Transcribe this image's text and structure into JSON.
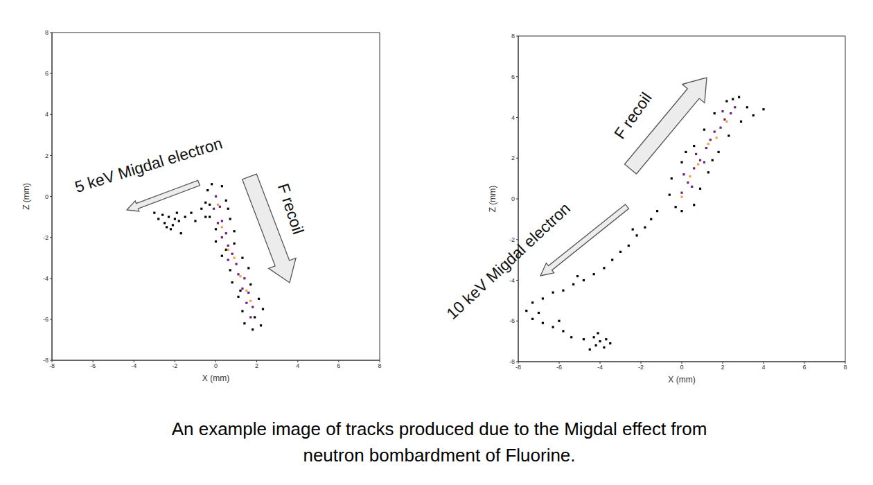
{
  "chart_data": [
    {
      "type": "scatter",
      "x_label": "X (mm)",
      "y_label": "Z (mm)",
      "xlim": [
        -8,
        8
      ],
      "ylim": [
        -8,
        8
      ],
      "xticks": [
        -8,
        -6,
        -4,
        -2,
        0,
        2,
        4,
        6,
        8
      ],
      "yticks": [
        -8,
        -6,
        -4,
        -2,
        0,
        2,
        4,
        6,
        8
      ],
      "series": [
        {
          "color": "#000000",
          "marker": "square",
          "points": [
            [
              -2.3,
              -1.0
            ],
            [
              -2.0,
              -1.1
            ],
            [
              -2.5,
              -1.3
            ],
            [
              -2.1,
              -1.4
            ],
            [
              -1.8,
              -1.2
            ],
            [
              -2.6,
              -0.9
            ],
            [
              -2.2,
              -1.6
            ],
            [
              -1.9,
              -0.8
            ],
            [
              -2.8,
              -1.1
            ],
            [
              -2.4,
              -1.5
            ],
            [
              -1.5,
              -1.0
            ],
            [
              -1.2,
              -0.8
            ],
            [
              -1.0,
              -1.2
            ],
            [
              -0.7,
              -0.6
            ],
            [
              -0.5,
              -1.0
            ],
            [
              -0.3,
              -0.4
            ],
            [
              -1.7,
              -1.8
            ],
            [
              -3.0,
              -0.8
            ]
          ]
        },
        {
          "color": "#000000",
          "marker": "square",
          "points": [
            [
              -0.4,
              0.3
            ],
            [
              0.3,
              0.5
            ],
            [
              -0.5,
              -0.3
            ],
            [
              0.5,
              -0.2
            ],
            [
              -0.3,
              -1.0
            ],
            [
              0.7,
              -1.1
            ],
            [
              0.0,
              -1.6
            ],
            [
              0.9,
              -1.7
            ],
            [
              0.0,
              -2.2
            ],
            [
              0.9,
              -2.3
            ],
            [
              0.3,
              -2.9
            ],
            [
              1.3,
              -3.0
            ],
            [
              0.7,
              -3.6
            ],
            [
              1.6,
              -3.5
            ],
            [
              0.8,
              -4.2
            ],
            [
              1.7,
              -4.3
            ],
            [
              1.1,
              -4.9
            ],
            [
              2.1,
              -5.0
            ],
            [
              1.3,
              -5.6
            ],
            [
              2.3,
              -5.5
            ],
            [
              1.4,
              -6.2
            ],
            [
              2.2,
              -6.3
            ],
            [
              1.8,
              -6.5
            ],
            [
              -0.2,
              0.6
            ],
            [
              0.6,
              -0.6
            ],
            [
              0.5,
              -2.6
            ],
            [
              1.2,
              -4.6
            ],
            [
              1.9,
              -5.9
            ]
          ]
        },
        {
          "color": "#6b1f7e",
          "marker": "square",
          "points": [
            [
              0.0,
              0.0
            ],
            [
              0.2,
              -0.5
            ],
            [
              -0.1,
              -0.6
            ],
            [
              0.3,
              -1.2
            ],
            [
              0.1,
              -1.3
            ],
            [
              0.5,
              -1.8
            ],
            [
              0.3,
              -2.0
            ],
            [
              0.6,
              -2.4
            ],
            [
              0.8,
              -2.8
            ],
            [
              0.6,
              -3.1
            ],
            [
              1.0,
              -3.3
            ],
            [
              1.1,
              -3.8
            ],
            [
              1.4,
              -4.0
            ],
            [
              1.3,
              -4.5
            ],
            [
              1.6,
              -4.7
            ],
            [
              1.5,
              -5.2
            ],
            [
              1.8,
              -5.4
            ],
            [
              1.7,
              -5.9
            ]
          ]
        },
        {
          "color": "#f7a13b",
          "marker": "square",
          "points": [
            [
              0.1,
              -0.4
            ],
            [
              0.3,
              -1.5
            ],
            [
              0.6,
              -2.6
            ],
            [
              0.9,
              -3.0
            ],
            [
              1.2,
              -3.9
            ],
            [
              1.5,
              -4.6
            ],
            [
              1.7,
              -5.1
            ]
          ]
        }
      ],
      "annotations": [
        {
          "text": "5 keV Migdal electron"
        },
        {
          "text": "F recoil"
        }
      ]
    },
    {
      "type": "scatter",
      "x_label": "X (mm)",
      "y_label": "Z (mm)",
      "xlim": [
        -8,
        8
      ],
      "ylim": [
        -8,
        8
      ],
      "xticks": [
        -8,
        -6,
        -4,
        -2,
        0,
        2,
        4,
        6,
        8
      ],
      "yticks": [
        -8,
        -6,
        -4,
        -2,
        0,
        2,
        4,
        6,
        8
      ],
      "series": [
        {
          "color": "#000000",
          "marker": "square",
          "points": [
            [
              -1.2,
              -0.6
            ],
            [
              -1.5,
              -1.0
            ],
            [
              -1.8,
              -1.4
            ],
            [
              -2.2,
              -1.8
            ],
            [
              -2.6,
              -2.3
            ],
            [
              -3.0,
              -2.6
            ],
            [
              -3.4,
              -3.0
            ],
            [
              -3.8,
              -3.4
            ],
            [
              -4.3,
              -3.7
            ],
            [
              -4.8,
              -4.0
            ],
            [
              -5.3,
              -4.2
            ],
            [
              -5.8,
              -4.5
            ],
            [
              -6.3,
              -4.6
            ],
            [
              -6.8,
              -4.9
            ],
            [
              -7.3,
              -5.1
            ],
            [
              -7.6,
              -5.5
            ],
            [
              -7.3,
              -5.9
            ],
            [
              -6.8,
              -6.1
            ],
            [
              -6.3,
              -6.3
            ],
            [
              -5.8,
              -6.5
            ],
            [
              -5.4,
              -6.8
            ],
            [
              -4.8,
              -6.9
            ],
            [
              -4.3,
              -6.8
            ],
            [
              -4.0,
              -7.0
            ],
            [
              -3.7,
              -6.9
            ],
            [
              -4.2,
              -7.2
            ],
            [
              -3.8,
              -7.3
            ],
            [
              -4.5,
              -7.4
            ],
            [
              -3.5,
              -7.1
            ],
            [
              -4.1,
              -6.6
            ],
            [
              -6.0,
              -6.0
            ],
            [
              -7.0,
              -5.6
            ],
            [
              -2.4,
              -1.5
            ],
            [
              -5.1,
              -3.8
            ]
          ]
        },
        {
          "color": "#000000",
          "marker": "square",
          "points": [
            [
              -0.6,
              0.2
            ],
            [
              0.6,
              -0.3
            ],
            [
              -0.5,
              1.0
            ],
            [
              0.9,
              0.5
            ],
            [
              0.0,
              1.8
            ],
            [
              1.3,
              1.3
            ],
            [
              0.6,
              2.6
            ],
            [
              1.8,
              2.3
            ],
            [
              1.1,
              3.4
            ],
            [
              2.3,
              3.1
            ],
            [
              1.6,
              4.2
            ],
            [
              2.9,
              3.8
            ],
            [
              2.2,
              4.8
            ],
            [
              3.2,
              4.5
            ],
            [
              2.8,
              5.0
            ],
            [
              3.5,
              4.1
            ],
            [
              4.0,
              4.4
            ],
            [
              0.0,
              -0.6
            ],
            [
              -0.3,
              -0.4
            ],
            [
              1.5,
              1.9
            ],
            [
              2.5,
              4.9
            ],
            [
              0.2,
              2.3
            ]
          ]
        },
        {
          "color": "#6b1f7e",
          "marker": "square",
          "points": [
            [
              0.0,
              0.3
            ],
            [
              0.3,
              0.8
            ],
            [
              0.1,
              1.2
            ],
            [
              0.6,
              1.5
            ],
            [
              0.9,
              1.9
            ],
            [
              0.7,
              2.2
            ],
            [
              1.2,
              2.5
            ],
            [
              1.4,
              2.9
            ],
            [
              1.6,
              3.3
            ],
            [
              1.9,
              3.5
            ],
            [
              2.1,
              3.9
            ],
            [
              2.4,
              4.2
            ],
            [
              2.6,
              4.5
            ],
            [
              0.5,
              0.6
            ],
            [
              1.1,
              1.8
            ],
            [
              2.0,
              4.3
            ]
          ]
        },
        {
          "color": "#f7a13b",
          "marker": "square",
          "points": [
            [
              0.0,
              0.1
            ],
            [
              0.4,
              1.1
            ],
            [
              0.8,
              1.7
            ],
            [
              1.3,
              2.7
            ],
            [
              1.7,
              3.0
            ],
            [
              2.2,
              3.8
            ]
          ]
        }
      ],
      "annotations": [
        {
          "text": "F recoil"
        },
        {
          "text": "10 keV Migdal electron"
        }
      ]
    }
  ],
  "caption": [
    "An example image of tracks produced due to the Migdal effect from",
    "neutron bombardment of Fluorine."
  ]
}
